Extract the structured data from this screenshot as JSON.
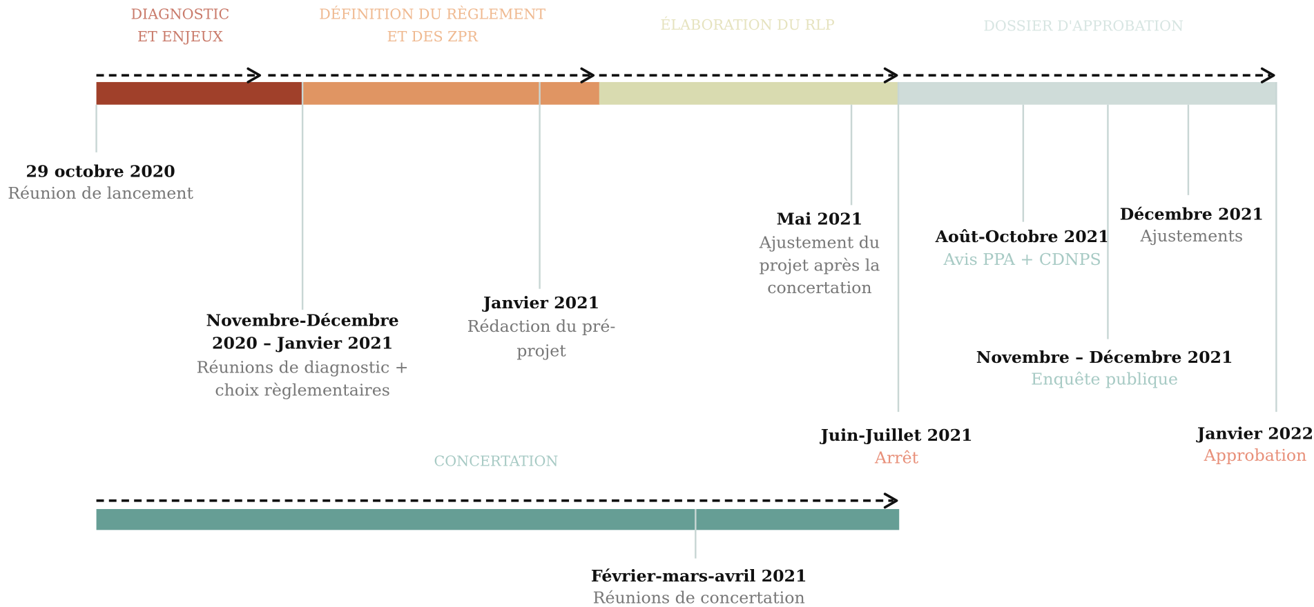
{
  "phases": [
    {
      "lines": [
        "DIAGNOSTIC",
        "ET ENJEUX"
      ]
    },
    {
      "lines": [
        "DÉFINITION DU RÈGLEMENT",
        "ET DES ZPR"
      ]
    },
    {
      "lines": [
        "ÉLABORATION DU RLP"
      ]
    },
    {
      "lines": [
        "DOSSIER D'APPROBATION"
      ]
    }
  ],
  "milestones": [
    {
      "date": [
        "29 octobre 2020"
      ],
      "description": [
        "Réunion de lancement"
      ]
    },
    {
      "date": [
        "Novembre-Décembre",
        "2020 – Janvier 2021"
      ],
      "description": [
        "Réunions de diagnostic +",
        "choix règlementaires"
      ]
    },
    {
      "date": [
        "Janvier 2021"
      ],
      "description": [
        "Rédaction du pré-",
        "projet"
      ]
    },
    {
      "date": [
        "Mai 2021"
      ],
      "description": [
        "Ajustement du",
        "projet après la",
        "concertation"
      ]
    },
    {
      "date": [
        "Juin-Juillet 2021"
      ],
      "description": [
        "Arrêt"
      ]
    },
    {
      "date": [
        "Août-Octobre 2021"
      ],
      "description": [
        "Avis PPA + CDNPS"
      ]
    },
    {
      "date": [
        "Novembre – Décembre 2021"
      ],
      "description": [
        "Enquête publique"
      ]
    },
    {
      "date": [
        "Décembre 2021"
      ],
      "description": [
        "Ajustements"
      ]
    },
    {
      "date": [
        "Janvier 2022"
      ],
      "description": [
        "Approbation"
      ]
    }
  ],
  "concertation": {
    "label": "CONCERTATION",
    "milestone": {
      "date": [
        "Février-mars-avril 2021"
      ],
      "description": [
        "Réunions de concertation"
      ]
    }
  }
}
